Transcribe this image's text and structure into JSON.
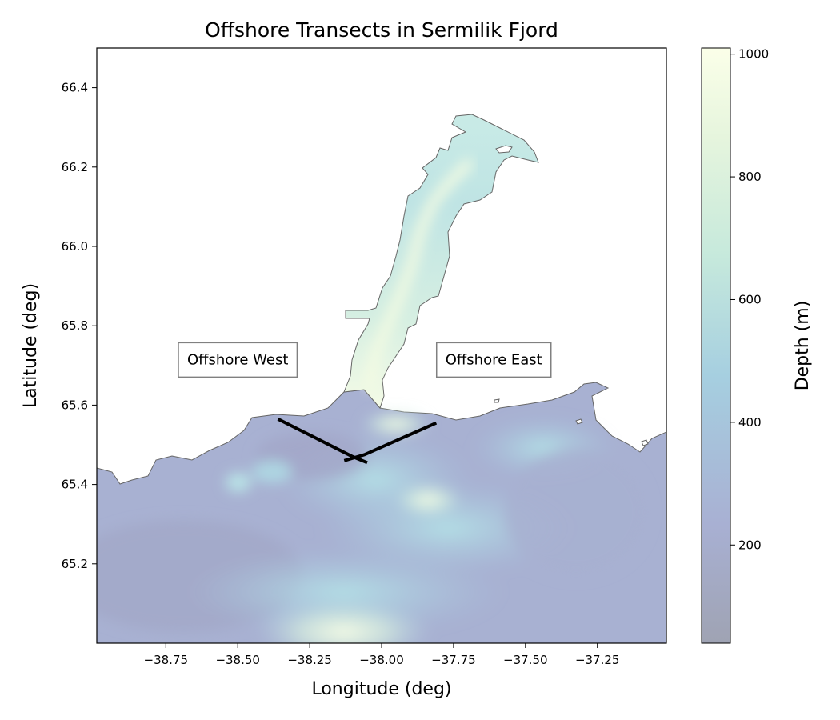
{
  "title": "Offshore Transects in Sermilik Fjord",
  "xlabel": "Longitude (deg)",
  "ylabel": "Latitude (deg)",
  "colorbar": {
    "label": "Depth (m)",
    "range": [
      40,
      1010
    ],
    "ticks": [
      200,
      400,
      600,
      800,
      1000
    ],
    "colors": [
      "#9fa3b3",
      "#a8b0d3",
      "#a6cfe0",
      "#c6e9dc",
      "#e6f5dd",
      "#fbffe9"
    ]
  },
  "chart_data": {
    "type": "heatmap",
    "title": "Offshore Transects in Sermilik Fjord",
    "xlabel": "Longitude (deg)",
    "ylabel": "Latitude (deg)",
    "xlim": [
      -38.99,
      -37.01
    ],
    "ylim": [
      65.0,
      66.5
    ],
    "xticks": [
      "−38.75",
      "−38.50",
      "−38.25",
      "−38.00",
      "−37.75",
      "−37.50",
      "−37.25"
    ],
    "yticks": [
      "65.2",
      "65.4",
      "65.6",
      "65.8",
      "66.0",
      "66.2",
      "66.4"
    ],
    "grid": false,
    "transects": [
      {
        "name": "Offshore West",
        "points": [
          [
            -38.36,
            65.565
          ],
          [
            -38.1,
            65.47
          ],
          [
            -38.05,
            65.455
          ]
        ]
      },
      {
        "name": "Offshore East",
        "points": [
          [
            -37.81,
            65.555
          ],
          [
            -38.06,
            65.475
          ],
          [
            -38.13,
            65.46
          ]
        ]
      }
    ],
    "labels": [
      {
        "text": "Offshore West",
        "x": -38.5,
        "y": 65.715
      },
      {
        "text": "Offshore East",
        "x": -37.61,
        "y": 65.715
      }
    ]
  }
}
